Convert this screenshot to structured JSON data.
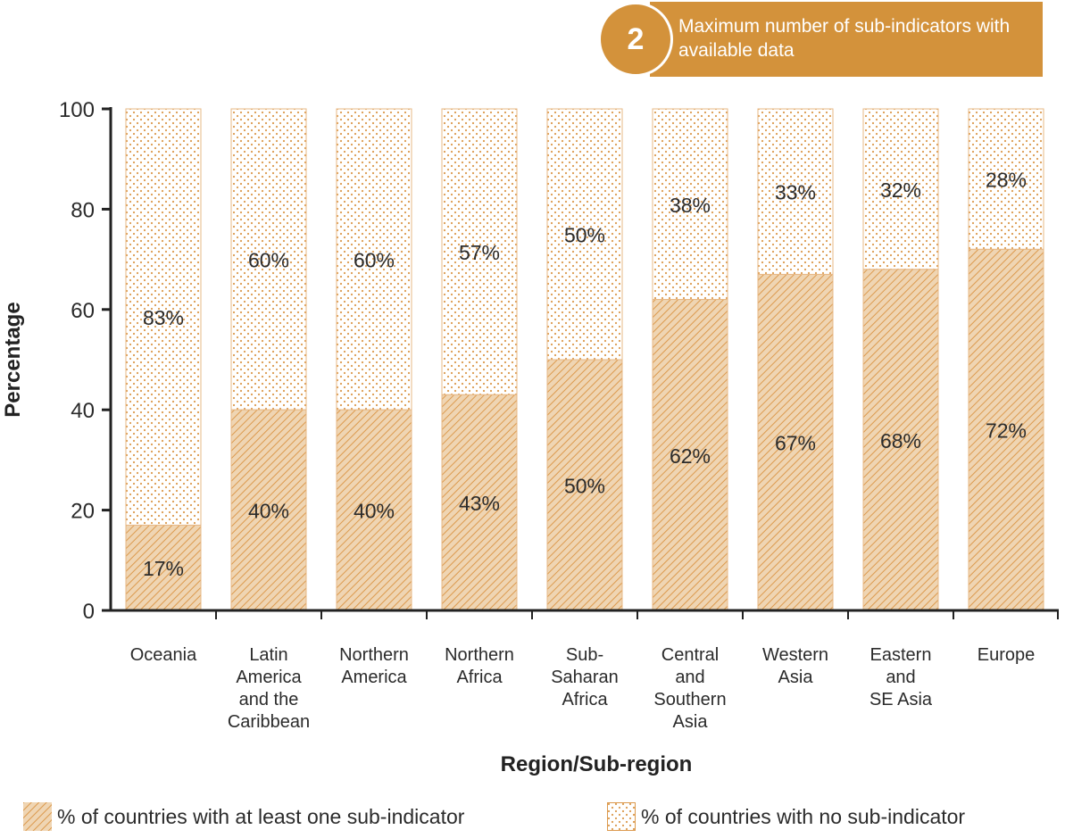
{
  "badge": {
    "number": "2",
    "text": "Maximum number of sub-indicators with available data"
  },
  "chart_data": {
    "type": "bar",
    "stacked": true,
    "categories": [
      [
        "Oceania"
      ],
      [
        "Latin",
        "America",
        "and the",
        "Caribbean"
      ],
      [
        "Northern",
        "America"
      ],
      [
        "Northern",
        "Africa"
      ],
      [
        "Sub-",
        "Saharan",
        "Africa"
      ],
      [
        "Central",
        "and",
        "Southern",
        "Asia"
      ],
      [
        "Western",
        "Asia"
      ],
      [
        "Eastern",
        "and",
        "SE Asia"
      ],
      [
        "Europe"
      ]
    ],
    "series": [
      {
        "name": "% of countries with at least one sub-indicator",
        "pattern": "hatched",
        "values": [
          17,
          40,
          40,
          43,
          50,
          62,
          67,
          68,
          72
        ],
        "labels": [
          "17%",
          "40%",
          "40%",
          "43%",
          "50%",
          "62%",
          "67%",
          "68%",
          "72%"
        ]
      },
      {
        "name": "% of countries with no sub-indicator",
        "pattern": "dotted",
        "values": [
          83,
          60,
          60,
          57,
          50,
          38,
          33,
          32,
          28
        ],
        "labels": [
          "83%",
          "60%",
          "60%",
          "57%",
          "50%",
          "38%",
          "33%",
          "32%",
          "28%"
        ]
      }
    ],
    "ylabel": "Percentage",
    "xlabel": "Region/Sub-region",
    "ylim": [
      0,
      100
    ],
    "yticks": [
      "0",
      "20",
      "40",
      "60",
      "80",
      "100"
    ],
    "grid": false,
    "legend_position": "bottom",
    "colors": {
      "fill": "#efd5b3",
      "pattern": "#dc9a4e",
      "accent": "#d3923b",
      "axis": "#222222"
    }
  }
}
